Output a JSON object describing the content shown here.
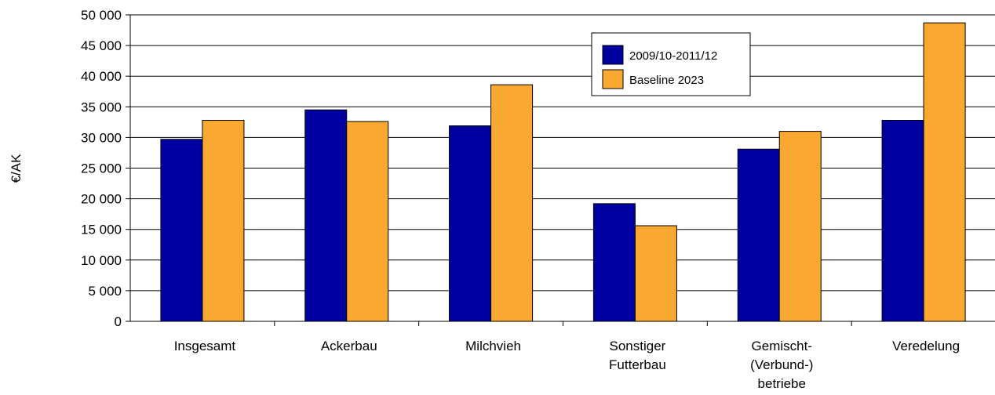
{
  "chart_data": {
    "type": "bar",
    "title": "",
    "xlabel": "",
    "ylabel": "€/AK",
    "ylim": [
      0,
      50000
    ],
    "yticks": [
      0,
      5000,
      10000,
      15000,
      20000,
      25000,
      30000,
      35000,
      40000,
      45000,
      50000
    ],
    "ytick_labels": [
      "0",
      "5 000",
      "10 000",
      "15 000",
      "20 000",
      "25 000",
      "30 000",
      "35 000",
      "40 000",
      "45 000",
      "50 000"
    ],
    "categories": [
      [
        "Insgesamt"
      ],
      [
        "Ackerbau"
      ],
      [
        "Milchvieh"
      ],
      [
        "Sonstiger",
        "Futterbau"
      ],
      [
        "Gemischt-",
        "(Verbund-)",
        "betriebe"
      ],
      [
        "Veredelung"
      ]
    ],
    "series": [
      {
        "name": "2009/10-2011/12",
        "color": "#0000a0",
        "values": [
          29700,
          34500,
          31900,
          19200,
          28100,
          32800
        ]
      },
      {
        "name": "Baseline 2023",
        "color": "#f9a832",
        "values": [
          32800,
          32600,
          38600,
          15600,
          31000,
          48700
        ]
      }
    ],
    "grid": true,
    "legend_position": "top-right"
  }
}
